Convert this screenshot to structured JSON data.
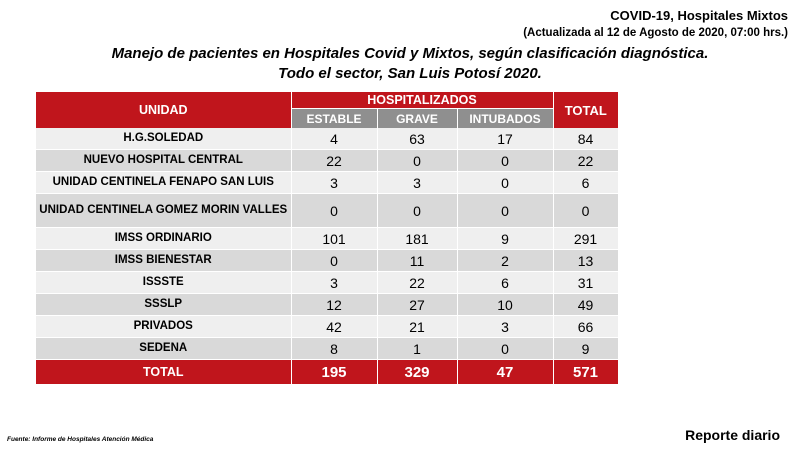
{
  "header": {
    "title": "COVID-19, Hospitales Mixtos",
    "updated": "(Actualizada al 12 de Agosto de 2020, 07:00 hrs.)"
  },
  "main_title": {
    "line1": "Manejo de pacientes en Hospitales Covid y Mixtos, según clasificación diagnóstica.",
    "line2": "Todo el sector, San Luis Potosí 2020."
  },
  "table": {
    "col_unidad": "UNIDAD",
    "col_group": "HOSPITALIZADOS",
    "col_estable": "ESTABLE",
    "col_grave": "GRAVE",
    "col_intubados": "INTUBADOS",
    "col_total": "TOTAL",
    "rows": [
      {
        "unidad": "H.G.SOLEDAD",
        "estable": "4",
        "grave": "63",
        "intubados": "17",
        "total": "84"
      },
      {
        "unidad": "NUEVO HOSPITAL CENTRAL",
        "estable": "22",
        "grave": "0",
        "intubados": "0",
        "total": "22"
      },
      {
        "unidad": "UNIDAD CENTINELA FENAPO SAN LUIS",
        "estable": "3",
        "grave": "3",
        "intubados": "0",
        "total": "6"
      },
      {
        "unidad": "UNIDAD CENTINELA GOMEZ MORIN VALLES",
        "estable": "0",
        "grave": "0",
        "intubados": "0",
        "total": "0"
      },
      {
        "unidad": "IMSS ORDINARIO",
        "estable": "101",
        "grave": "181",
        "intubados": "9",
        "total": "291"
      },
      {
        "unidad": "IMSS BIENESTAR",
        "estable": "0",
        "grave": "11",
        "intubados": "2",
        "total": "13"
      },
      {
        "unidad": "ISSSTE",
        "estable": "3",
        "grave": "22",
        "intubados": "6",
        "total": "31"
      },
      {
        "unidad": "SSSLP",
        "estable": "12",
        "grave": "27",
        "intubados": "10",
        "total": "49"
      },
      {
        "unidad": "PRIVADOS",
        "estable": "42",
        "grave": "21",
        "intubados": "3",
        "total": "66"
      },
      {
        "unidad": "SEDENA",
        "estable": "8",
        "grave": "1",
        "intubados": "0",
        "total": "9"
      }
    ],
    "totals": {
      "label": "TOTAL",
      "estable": "195",
      "grave": "329",
      "intubados": "47",
      "total": "571"
    }
  },
  "footer": {
    "source": "Fuente: Informe de Hospitales Atención Médica",
    "report": "Reporte diario"
  },
  "colors": {
    "header_red": "#c0151c",
    "subheader_gray": "#8f8f8f",
    "row_light": "#efefef",
    "row_dark": "#d9d9d9"
  }
}
